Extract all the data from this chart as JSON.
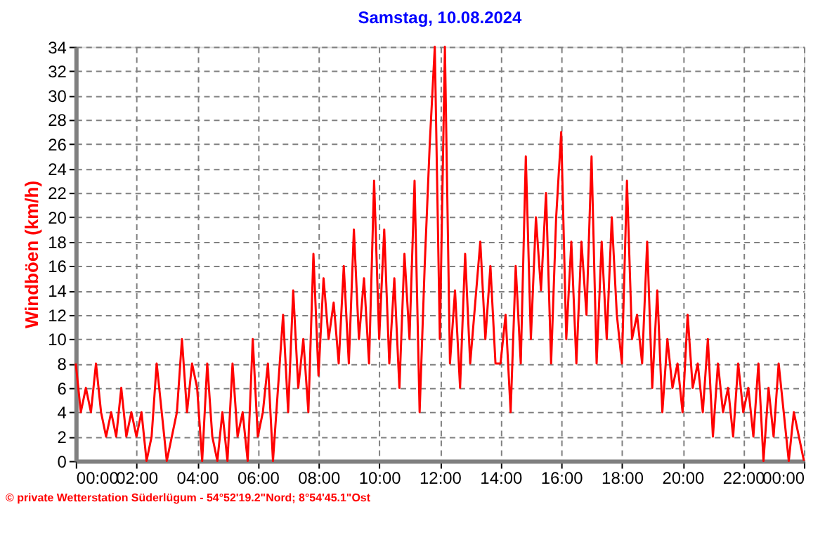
{
  "chart_data": {
    "type": "line",
    "title": "Samstag, 10.08.2024",
    "ylabel": "Windböen (km/h)",
    "x": [
      0,
      0.1667,
      0.3333,
      0.5,
      0.6667,
      0.8333,
      1,
      1.1667,
      1.3333,
      1.5,
      1.6667,
      1.8333,
      2,
      2.1667,
      2.3333,
      2.5,
      2.6667,
      2.8333,
      3,
      3.1667,
      3.3333,
      3.5,
      3.6667,
      3.8333,
      4,
      4.1667,
      4.3333,
      4.5,
      4.6667,
      4.8333,
      5,
      5.1667,
      5.3333,
      5.5,
      5.6667,
      5.8333,
      6,
      6.1667,
      6.3333,
      6.5,
      6.6667,
      6.8333,
      7,
      7.1667,
      7.3333,
      7.5,
      7.6667,
      7.8333,
      8,
      8.1667,
      8.3333,
      8.5,
      8.6667,
      8.8333,
      9,
      9.1667,
      9.3333,
      9.5,
      9.6667,
      9.8333,
      10,
      10.1667,
      10.3333,
      10.5,
      10.6667,
      10.8333,
      11,
      11.1667,
      11.3333,
      11.5,
      11.6667,
      11.8333,
      12,
      12.1667,
      12.3333,
      12.5,
      12.6667,
      12.8333,
      13,
      13.1667,
      13.3333,
      13.5,
      13.6667,
      13.8333,
      14,
      14.1667,
      14.3333,
      14.5,
      14.6667,
      14.8333,
      15,
      15.1667,
      15.3333,
      15.5,
      15.6667,
      15.8333,
      16,
      16.1667,
      16.3333,
      16.5,
      16.6667,
      16.8333,
      17,
      17.1667,
      17.3333,
      17.5,
      17.6667,
      17.8333,
      18,
      18.1667,
      18.3333,
      18.5,
      18.6667,
      18.8333,
      19,
      19.1667,
      19.3333,
      19.5,
      19.6667,
      19.8333,
      20,
      20.1667,
      20.3333,
      20.5,
      20.6667,
      20.8333,
      21,
      21.1667,
      21.3333,
      21.5,
      21.6667,
      21.8333,
      22,
      22.1667,
      22.3333,
      22.5,
      22.6667,
      22.8333,
      23,
      23.1667,
      23.3333,
      23.5,
      23.6667,
      23.8333,
      24
    ],
    "series": [
      {
        "color": "#ff0000",
        "values": [
          8,
          4,
          6,
          4,
          8,
          4,
          2,
          4,
          2,
          6,
          2,
          4,
          2,
          4,
          0,
          2,
          8,
          4,
          0,
          2,
          4,
          10,
          4,
          8,
          6,
          0,
          8,
          2,
          0,
          4,
          0,
          8,
          2,
          4,
          0,
          10,
          2,
          4,
          8,
          0,
          6,
          12,
          4,
          14,
          6,
          10,
          4,
          17,
          7,
          15,
          10,
          13,
          8,
          16,
          8,
          19,
          10,
          15,
          8,
          23,
          10,
          19,
          8,
          15,
          6,
          17,
          10,
          23,
          4,
          16,
          26,
          34,
          10,
          34,
          8,
          14,
          6,
          17,
          8,
          13,
          18,
          10,
          16,
          8,
          8,
          12,
          4,
          16,
          8,
          25,
          10,
          20,
          14,
          22,
          8,
          20,
          27,
          10,
          18,
          8,
          18,
          12,
          25,
          8,
          18,
          10,
          20,
          12,
          8,
          23,
          10,
          12,
          8,
          18,
          6,
          14,
          4,
          10,
          6,
          8,
          4,
          12,
          6,
          8,
          4,
          10,
          2,
          8,
          4,
          6,
          2,
          8,
          4,
          6,
          2,
          8,
          0,
          6,
          2,
          8,
          4,
          0,
          4,
          2,
          0
        ]
      }
    ],
    "xlim": [
      0,
      24
    ],
    "xticks": [
      {
        "value": 0,
        "label": "00:00"
      },
      {
        "value": 2,
        "label": "02:00"
      },
      {
        "value": 4,
        "label": "04:00"
      },
      {
        "value": 6,
        "label": "06:00"
      },
      {
        "value": 8,
        "label": "08:00"
      },
      {
        "value": 10,
        "label": "10:00"
      },
      {
        "value": 12,
        "label": "12:00"
      },
      {
        "value": 14,
        "label": "14:00"
      },
      {
        "value": 16,
        "label": "16:00"
      },
      {
        "value": 18,
        "label": "18:00"
      },
      {
        "value": 20,
        "label": "20:00"
      },
      {
        "value": 22,
        "label": "22:00"
      },
      {
        "value": 24,
        "label": "00:00"
      }
    ],
    "ylim": [
      0,
      34
    ],
    "yticks": [
      0,
      2,
      4,
      6,
      8,
      10,
      12,
      14,
      16,
      18,
      20,
      22,
      24,
      26,
      28,
      30,
      32,
      34
    ],
    "grid": true,
    "legend": false,
    "marker": "none",
    "line_style": "solid",
    "annotations": [
      "© private Wetterstation Süderlügum - 54°52'19.2\"Nord; 8°54'45.1\"Ost"
    ]
  }
}
